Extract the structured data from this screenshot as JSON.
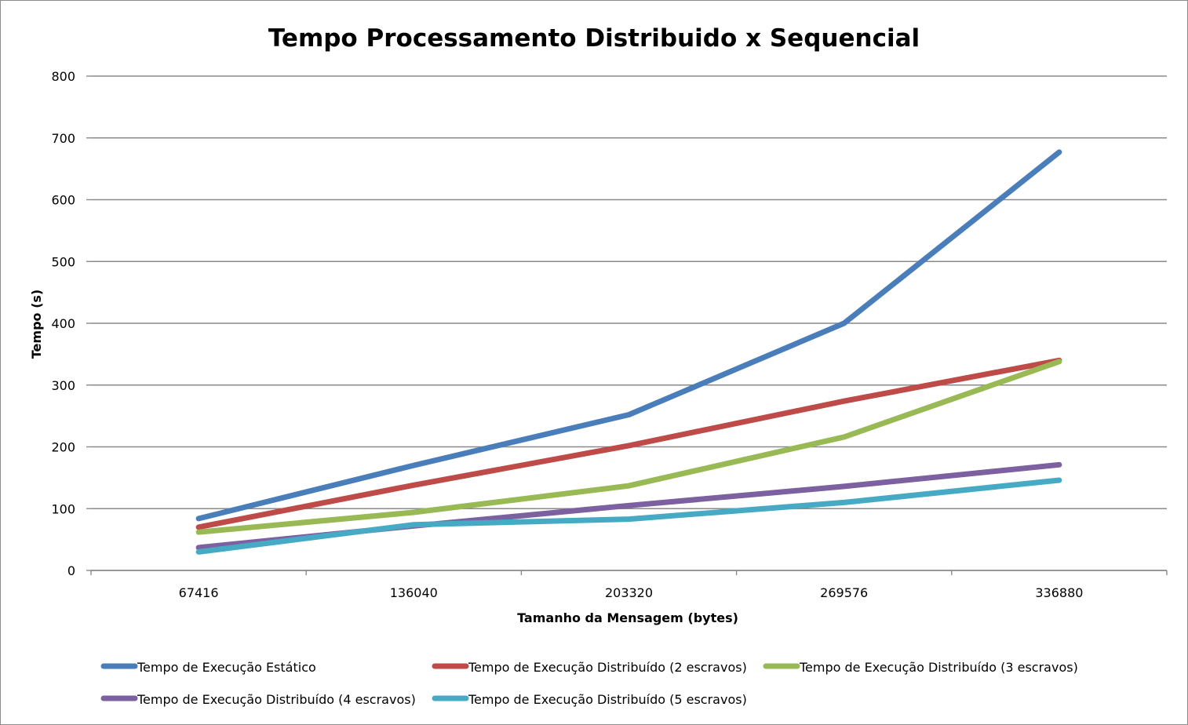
{
  "chart_data": {
    "type": "line",
    "title": "Tempo Processamento Distribuido x Sequencial",
    "xlabel": "Tamanho da Mensagem (bytes)",
    "ylabel": "Tempo (s)",
    "categories": [
      "67416",
      "136040",
      "203320",
      "269576",
      "336880"
    ],
    "ylim": [
      0,
      800
    ],
    "yticks": [
      0,
      100,
      200,
      300,
      400,
      500,
      600,
      700,
      800
    ],
    "grid": "horizontal",
    "legend_position": "bottom",
    "series": [
      {
        "name": "Tempo de Execução Estático",
        "color": "#4a7ebb",
        "values": [
          84,
          170,
          252,
          400,
          677
        ]
      },
      {
        "name": "Tempo de Execução Distribuído (2 escravos)",
        "color": "#be4b48",
        "values": [
          70,
          138,
          202,
          274,
          340
        ]
      },
      {
        "name": "Tempo de Execução Distribuído (3 escravos)",
        "color": "#98b954",
        "values": [
          62,
          94,
          137,
          216,
          338
        ]
      },
      {
        "name": "Tempo de Execução Distribuído (4 escravos)",
        "color": "#7d60a0",
        "values": [
          37,
          72,
          105,
          136,
          171
        ]
      },
      {
        "name": "Tempo de Execução Distribuído (5 escravos)",
        "color": "#46aac5",
        "values": [
          30,
          74,
          83,
          110,
          146
        ]
      }
    ]
  }
}
